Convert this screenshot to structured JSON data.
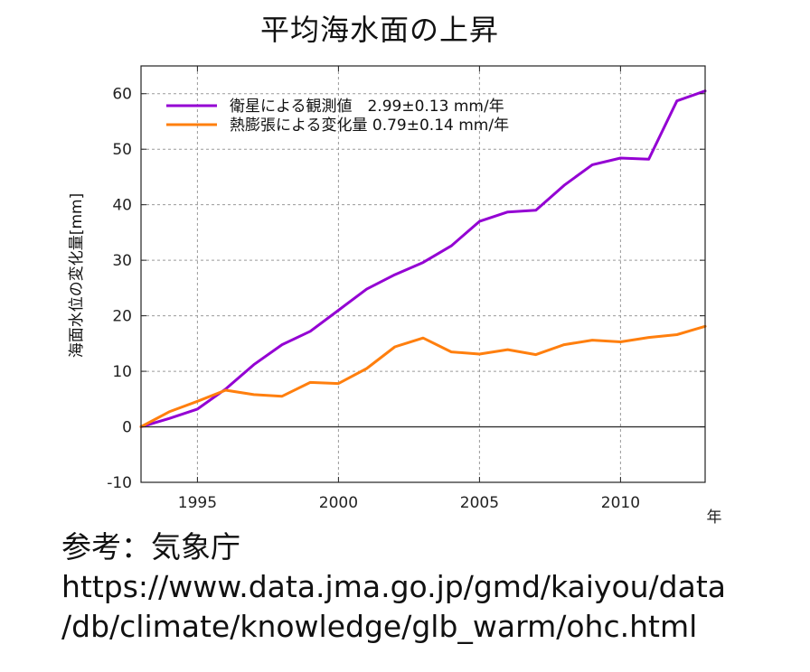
{
  "title": "平均海水面の上昇",
  "source": {
    "heading": "参考：気象庁",
    "url_line1": "https://www.data.jma.go.jp/gmd/kaiyou/data",
    "url_line2": "/db/climate/knowledge/glb_warm/ohc.html"
  },
  "chart_data": {
    "type": "line",
    "title": "平均海水面の上昇",
    "xlabel": "年",
    "ylabel": "海面水位の変化量[mm]",
    "xlim": [
      1993,
      2013
    ],
    "ylim": [
      -10,
      65
    ],
    "xticks": [
      1995,
      2000,
      2005,
      2010
    ],
    "xtick_labels": [
      "1995",
      "2000",
      "2005",
      "2010"
    ],
    "yticks": [
      -10,
      0,
      10,
      20,
      30,
      40,
      50,
      60
    ],
    "ytick_labels": [
      "-10",
      "0",
      "10",
      "20",
      "30",
      "40",
      "50",
      "60"
    ],
    "grid": true,
    "legend_position": "top-left",
    "zero_line": true,
    "series": [
      {
        "name": "衛星による観測値　2.99±0.13 mm/年",
        "color": "#9400D3",
        "x": [
          1993,
          1994,
          1995,
          1996,
          1997,
          1998,
          1999,
          2000,
          2001,
          2002,
          2003,
          2004,
          2005,
          2006,
          2007,
          2008,
          2009,
          2010,
          2011,
          2012,
          2013
        ],
        "y": [
          0,
          1.5,
          3.2,
          6.8,
          11.2,
          14.8,
          17.2,
          21.0,
          24.8,
          27.4,
          29.6,
          32.6,
          37.0,
          38.7,
          39.0,
          43.5,
          47.2,
          48.4,
          48.2,
          58.7,
          60.5
        ]
      },
      {
        "name": "熱膨張による変化量 0.79±0.14 mm/年",
        "color": "#FF7F0E",
        "x": [
          1993,
          1994,
          1995,
          1996,
          1997,
          1998,
          1999,
          2000,
          2001,
          2002,
          2003,
          2004,
          2005,
          2006,
          2007,
          2008,
          2009,
          2010,
          2011,
          2012,
          2013
        ],
        "y": [
          0,
          2.7,
          4.6,
          6.6,
          5.8,
          5.5,
          8.0,
          7.8,
          10.5,
          14.4,
          16.0,
          13.5,
          13.1,
          13.9,
          13.0,
          14.8,
          15.6,
          15.3,
          16.1,
          16.6,
          18.1
        ]
      }
    ]
  }
}
